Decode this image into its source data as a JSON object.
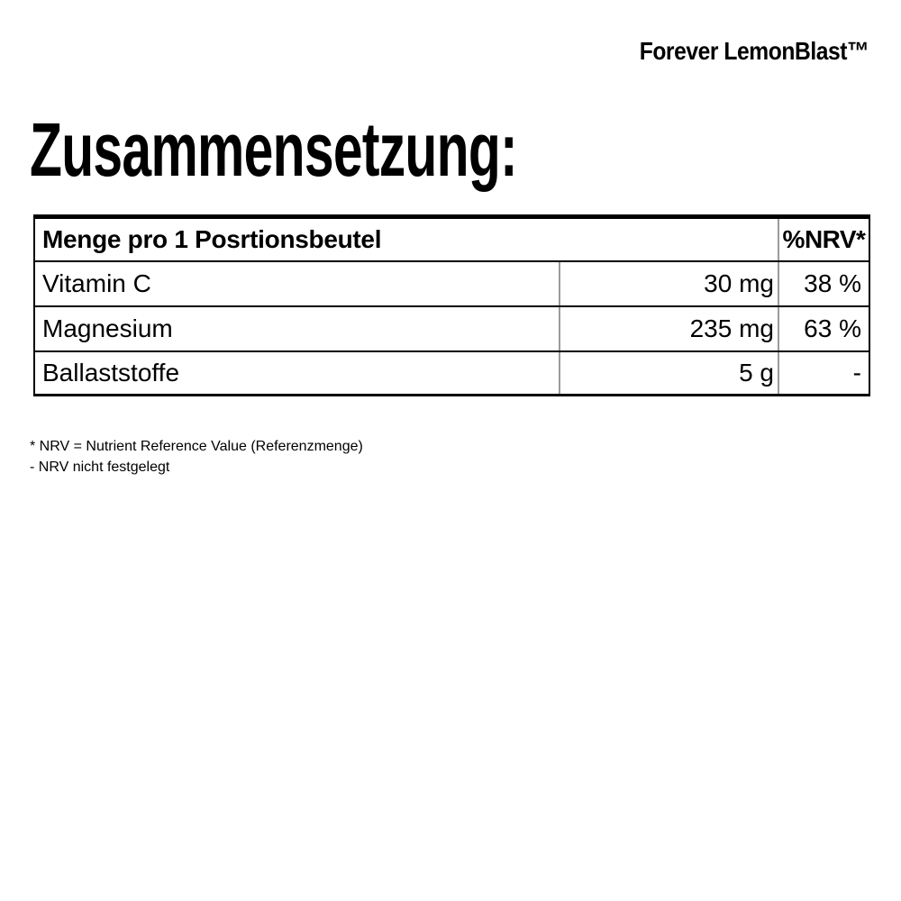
{
  "brand": {
    "title": "Forever LemonBlast™"
  },
  "heading": "Zusammensetzung:",
  "table": {
    "header": {
      "col_main": "Menge pro 1 Posrtionsbeutel",
      "col_nrv": "%NRV*"
    },
    "rows": [
      {
        "name": "Vitamin C",
        "amount": "30 mg",
        "nrv": "38 %"
      },
      {
        "name": "Magnesium",
        "amount": "235 mg",
        "nrv": "63 %"
      },
      {
        "name": "Ballaststoffe",
        "amount": "5 g",
        "nrv": "-"
      }
    ],
    "colors": {
      "border_black": "#000000",
      "divider_gray": "#9b9b9b"
    }
  },
  "footnotes": {
    "line1": "* NRV = Nutrient Reference Value (Referenzmenge)",
    "line2": "- NRV nicht festgelegt"
  }
}
